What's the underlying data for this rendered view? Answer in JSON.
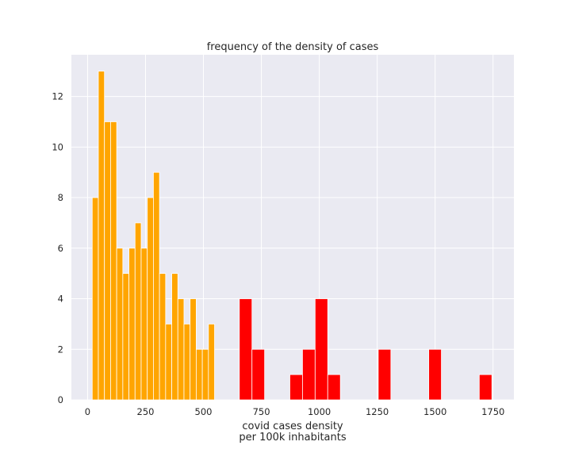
{
  "chart_data": {
    "type": "bar",
    "title": "frequency of the density of cases",
    "xlabel_line1": "covid cases density",
    "xlabel_line2": "per 100k inhabitants",
    "ylabel": "",
    "xlim": [
      -70,
      1840
    ],
    "ylim": [
      0,
      13.65
    ],
    "xticks": [
      0,
      250,
      500,
      750,
      1000,
      1250,
      1500,
      1750
    ],
    "yticks": [
      0,
      2,
      4,
      6,
      8,
      10,
      12
    ],
    "grid": true,
    "background_color": "#EAEAF2",
    "grid_color": "#FFFFFF",
    "series": [
      {
        "color": "#FFA500",
        "bin_width": 26.4,
        "bins_start": [
          20,
          46.4,
          72.8,
          99.2,
          125.6,
          152,
          178.4,
          204.8,
          231.2,
          257.6,
          284,
          310.4,
          336.8,
          363.2,
          389.6,
          416,
          442.4,
          468.8,
          495.2,
          521.6
        ],
        "values": [
          8,
          13,
          11,
          11,
          6,
          5,
          6,
          7,
          6,
          8,
          9,
          5,
          3,
          5,
          4,
          3,
          4,
          2,
          2,
          3
        ]
      },
      {
        "color": "#FF0000",
        "bin_width": 54.5,
        "bins_start": [
          655,
          709.5,
          873,
          927.5,
          982,
          1036.5,
          1254.5,
          1472.5,
          1690.5
        ],
        "values": [
          4,
          2,
          1,
          2,
          4,
          1,
          2,
          2,
          1
        ]
      }
    ]
  }
}
